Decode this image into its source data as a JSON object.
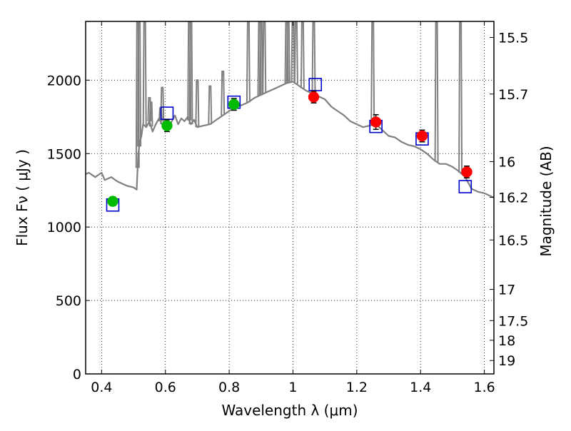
{
  "chart_data": {
    "type": "scatter",
    "xlabel": "Wavelength  λ (μm)",
    "ylabel": "Flux  Fν  ( μJy )",
    "y2label": "Magnitude (AB)",
    "xlim": [
      0.35,
      1.63
    ],
    "ylim": [
      0,
      2400
    ],
    "grid": true,
    "x_ticks": [
      0.4,
      0.6,
      0.8,
      1.0,
      1.2,
      1.4,
      1.6
    ],
    "x_tick_labels": [
      "0.4",
      "0.6",
      "0.8",
      "1",
      "1.2",
      "1.4",
      "1.6"
    ],
    "y_ticks": [
      0,
      500,
      1000,
      1500,
      2000
    ],
    "y_tick_labels": [
      "0",
      "500",
      "1000",
      "1500",
      "2000"
    ],
    "mag_ticks": [
      15.5,
      15.7,
      16,
      16.2,
      16.5,
      17,
      17.5,
      18,
      19
    ],
    "mag_tick_labels": [
      "15.5",
      "15.7",
      "16",
      "16.2",
      "16.5",
      "17",
      "17.5",
      "18",
      "19"
    ],
    "colors": {
      "model": "#808080",
      "optical": "#00bb00",
      "infrared": "#ff0000",
      "model_band": "#0000cc"
    },
    "model_spectrum": {
      "x": [
        0.35,
        0.36,
        0.38,
        0.4,
        0.41,
        0.43,
        0.45,
        0.47,
        0.48,
        0.5,
        0.51,
        0.515,
        0.52,
        0.525,
        0.53,
        0.54,
        0.55,
        0.56,
        0.57,
        0.58,
        0.59,
        0.6,
        0.61,
        0.62,
        0.63,
        0.64,
        0.65,
        0.66,
        0.67,
        0.68,
        0.69,
        0.7,
        0.72,
        0.74,
        0.76,
        0.78,
        0.8,
        0.82,
        0.84,
        0.86,
        0.88,
        0.9,
        0.92,
        0.94,
        0.96,
        0.98,
        1.0,
        1.02,
        1.04,
        1.06,
        1.08,
        1.1,
        1.12,
        1.14,
        1.16,
        1.18,
        1.2,
        1.22,
        1.24,
        1.26,
        1.28,
        1.3,
        1.32,
        1.34,
        1.36,
        1.38,
        1.4,
        1.42,
        1.44,
        1.46,
        1.48,
        1.5,
        1.52,
        1.54,
        1.56,
        1.58,
        1.6,
        1.63
      ],
      "y": [
        1360,
        1370,
        1340,
        1370,
        1320,
        1340,
        1310,
        1290,
        1280,
        1270,
        1255,
        1500,
        1580,
        1620,
        1700,
        1680,
        1720,
        1650,
        1700,
        1740,
        1700,
        1710,
        1680,
        1720,
        1760,
        1700,
        1740,
        1720,
        1750,
        1700,
        1730,
        1680,
        1690,
        1700,
        1730,
        1760,
        1790,
        1820,
        1830,
        1850,
        1880,
        1900,
        1920,
        1940,
        1960,
        1980,
        1990,
        1960,
        1930,
        1910,
        1890,
        1870,
        1820,
        1790,
        1760,
        1720,
        1700,
        1680,
        1690,
        1700,
        1660,
        1620,
        1610,
        1580,
        1560,
        1550,
        1530,
        1500,
        1460,
        1430,
        1430,
        1410,
        1380,
        1340,
        1260,
        1240,
        1230,
        1200
      ]
    },
    "emission_lines": [
      {
        "x": 0.513,
        "top": 2400
      },
      {
        "x": 0.518,
        "top": 2400
      },
      {
        "x": 0.535,
        "top": 2400
      },
      {
        "x": 0.55,
        "top": 1880
      },
      {
        "x": 0.555,
        "top": 1850
      },
      {
        "x": 0.585,
        "top": 1810
      },
      {
        "x": 0.59,
        "top": 1950
      },
      {
        "x": 0.675,
        "top": 2400
      },
      {
        "x": 0.68,
        "top": 2400
      },
      {
        "x": 0.7,
        "top": 2000
      },
      {
        "x": 0.74,
        "top": 1960
      },
      {
        "x": 0.78,
        "top": 2060
      },
      {
        "x": 0.86,
        "top": 2400
      },
      {
        "x": 0.895,
        "top": 2400
      },
      {
        "x": 0.9,
        "top": 2400
      },
      {
        "x": 0.91,
        "top": 2400
      },
      {
        "x": 0.98,
        "top": 2400
      },
      {
        "x": 0.985,
        "top": 2400
      },
      {
        "x": 1.0,
        "top": 2400
      },
      {
        "x": 1.01,
        "top": 2400
      },
      {
        "x": 1.03,
        "top": 2400
      },
      {
        "x": 1.065,
        "top": 2400
      },
      {
        "x": 1.25,
        "top": 2400
      },
      {
        "x": 1.45,
        "top": 2400
      },
      {
        "x": 1.525,
        "top": 2400
      }
    ],
    "optical_points": {
      "x": [
        0.435,
        0.605,
        0.815
      ],
      "y": [
        1175,
        1690,
        1835
      ],
      "yerr": [
        30,
        40,
        40
      ]
    },
    "infrared_points": {
      "x": [
        1.065,
        1.26,
        1.405,
        1.545
      ],
      "y": [
        1885,
        1715,
        1620,
        1375
      ],
      "yerr": [
        40,
        50,
        40,
        40
      ]
    },
    "model_band_points": {
      "x": [
        0.435,
        0.605,
        0.815,
        1.07,
        1.26,
        1.405,
        1.54
      ],
      "y": [
        1150,
        1775,
        1850,
        1970,
        1685,
        1600,
        1275
      ]
    }
  }
}
